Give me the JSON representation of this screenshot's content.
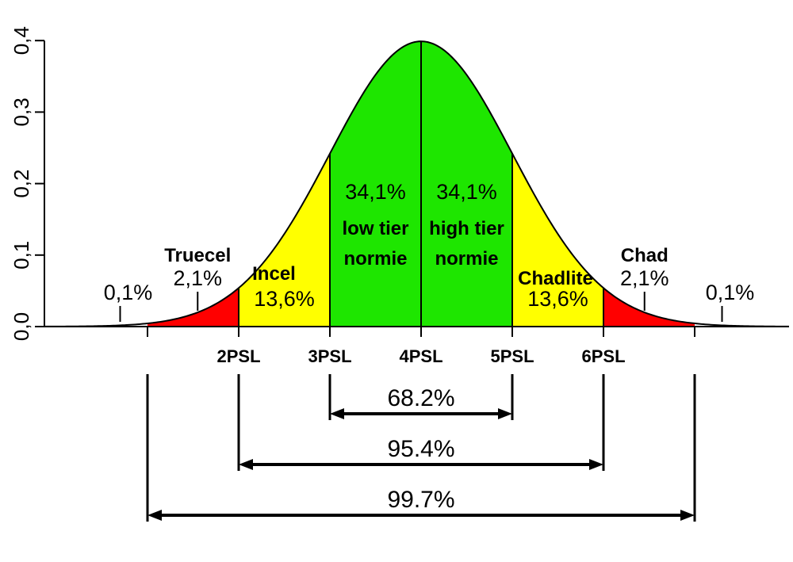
{
  "chart_data": {
    "type": "area",
    "distribution": "normal",
    "mean": 0,
    "sd": 1,
    "ylim": [
      0,
      0.4
    ],
    "xlim": [
      -4.5,
      4.5
    ],
    "y_ticks": [
      "0,0",
      "0,1",
      "0,2",
      "0,3",
      "0,4"
    ],
    "y_tick_values": [
      0,
      0.1,
      0.2,
      0.3,
      0.4
    ],
    "x_ticks": [
      {
        "x": -3,
        "label": ""
      },
      {
        "x": -2,
        "label": "2PSL"
      },
      {
        "x": -1,
        "label": "3PSL"
      },
      {
        "x": 0,
        "label": "4PSL"
      },
      {
        "x": 1,
        "label": "5PSL"
      },
      {
        "x": 2,
        "label": "6PSL"
      },
      {
        "x": 3,
        "label": ""
      }
    ],
    "bands": [
      {
        "from": -3,
        "to": -2,
        "color": "#ff0000"
      },
      {
        "from": -2,
        "to": -1,
        "color": "#ffff00"
      },
      {
        "from": -1,
        "to": 0,
        "color": "#1ee600"
      },
      {
        "from": 0,
        "to": 1,
        "color": "#1ee600"
      },
      {
        "from": 1,
        "to": 2,
        "color": "#ffff00"
      },
      {
        "from": 2,
        "to": 3,
        "color": "#ff0000"
      }
    ],
    "band_labels": [
      {
        "center": -0.5,
        "pct": "34,1%",
        "name1": "low tier",
        "name2": "normie"
      },
      {
        "center": 0.5,
        "pct": "34,1%",
        "name1": "high tier",
        "name2": "normie"
      },
      {
        "center": -1.5,
        "pct": "13,6%",
        "name1": "Incel",
        "name2": ""
      },
      {
        "center": 1.5,
        "pct": "13,6%",
        "name1": "Chadlite",
        "name2": ""
      }
    ],
    "tail_labels": [
      {
        "x": -2.45,
        "name": "Truecel",
        "pct": "2,1%"
      },
      {
        "x": 2.45,
        "name": "Chad",
        "pct": "2,1%"
      },
      {
        "x": -3.3,
        "name": "",
        "pct": "0,1%"
      },
      {
        "x": 3.3,
        "name": "",
        "pct": "0,1%"
      }
    ],
    "ranges": [
      {
        "from": -1,
        "to": 1,
        "label": "68.2%"
      },
      {
        "from": -2,
        "to": 2,
        "label": "95.4%"
      },
      {
        "from": -3,
        "to": 3,
        "label": "99.7%"
      }
    ],
    "colors": {
      "red": "#ff0000",
      "yellow": "#ffff00",
      "green": "#1ee600",
      "line": "#000000"
    }
  }
}
